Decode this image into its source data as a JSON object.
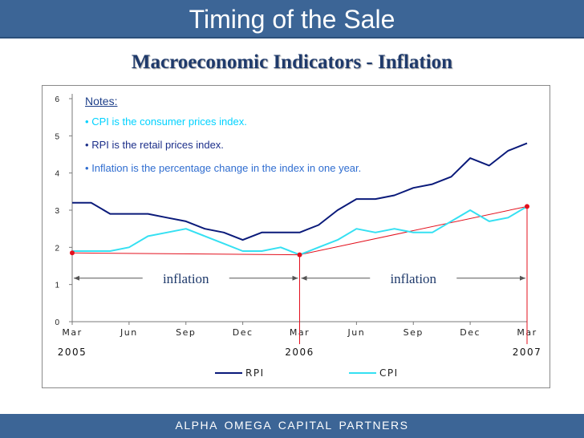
{
  "header": {
    "title": "Timing of the Sale"
  },
  "subtitle": "Macroeconomic Indicators - Inflation",
  "notes": {
    "title": "Notes:",
    "items": [
      {
        "text": "CPI is the consumer prices index.",
        "color": "#00d2ff"
      },
      {
        "text": "RPI is the retail prices index.",
        "color": "#1c2f8a"
      },
      {
        "text": "Inflation is the percentage change in the index in one year.",
        "color": "#2f6dd0"
      }
    ]
  },
  "colors": {
    "rpi": "#0a1a7a",
    "cpi": "#35e0f2",
    "annotation": "#e3101d",
    "header": "#3c6596"
  },
  "chart_data": {
    "type": "line",
    "title": "",
    "xlabel": "",
    "ylabel": "",
    "ylim": [
      0,
      6
    ],
    "yticks": [
      0,
      1,
      2,
      3,
      4,
      5,
      6
    ],
    "xlim": [
      0,
      24
    ],
    "x_ticks": [
      {
        "x": 0,
        "label": "Mar"
      },
      {
        "x": 3,
        "label": "Jun"
      },
      {
        "x": 6,
        "label": "Sep"
      },
      {
        "x": 9,
        "label": "Dec"
      },
      {
        "x": 12,
        "label": "Mar"
      },
      {
        "x": 15,
        "label": "Jun"
      },
      {
        "x": 18,
        "label": "Sep"
      },
      {
        "x": 21,
        "label": "Dec"
      },
      {
        "x": 24,
        "label": "Mar"
      }
    ],
    "year_labels": [
      {
        "x": 0,
        "label": "2005"
      },
      {
        "x": 12,
        "label": "2006"
      },
      {
        "x": 24,
        "label": "2007"
      }
    ],
    "series": [
      {
        "name": "RPI",
        "x": [
          0,
          1,
          2,
          3,
          4,
          5,
          6,
          7,
          8,
          9,
          10,
          11,
          12,
          13,
          14,
          15,
          16,
          17,
          18,
          19,
          20,
          21,
          22,
          23,
          24
        ],
        "values": [
          3.2,
          3.2,
          2.9,
          2.9,
          2.9,
          2.8,
          2.7,
          2.5,
          2.4,
          2.2,
          2.4,
          2.4,
          2.4,
          2.6,
          3.0,
          3.3,
          3.3,
          3.4,
          3.6,
          3.7,
          3.9,
          4.4,
          4.2,
          4.6,
          4.8
        ]
      },
      {
        "name": "CPI",
        "x": [
          0,
          1,
          2,
          3,
          4,
          5,
          6,
          7,
          8,
          9,
          10,
          11,
          12,
          13,
          14,
          15,
          16,
          17,
          18,
          19,
          20,
          21,
          22,
          23,
          24
        ],
        "values": [
          1.9,
          1.9,
          1.9,
          2.0,
          2.3,
          2.4,
          2.5,
          2.3,
          2.1,
          1.9,
          1.9,
          2.0,
          1.8,
          2.0,
          2.2,
          2.5,
          2.4,
          2.5,
          2.4,
          2.4,
          2.7,
          3.0,
          2.7,
          2.8,
          3.1
        ]
      }
    ],
    "legend": {
      "position": "bottom-center",
      "entries": [
        "RPI",
        "CPI"
      ]
    },
    "annotations": {
      "points": [
        {
          "x": 0,
          "y": 1.85
        },
        {
          "x": 12,
          "y": 1.8
        },
        {
          "x": 24,
          "y": 3.1
        }
      ],
      "inflation_spans": [
        {
          "from": 0,
          "to": 12,
          "y": 1.17,
          "label": "inflation"
        },
        {
          "from": 12,
          "to": 24,
          "y": 1.17,
          "label": "inflation"
        }
      ]
    }
  },
  "footer": {
    "text": "ALPHA  OMEGA  CAPITAL  PARTNERS"
  }
}
